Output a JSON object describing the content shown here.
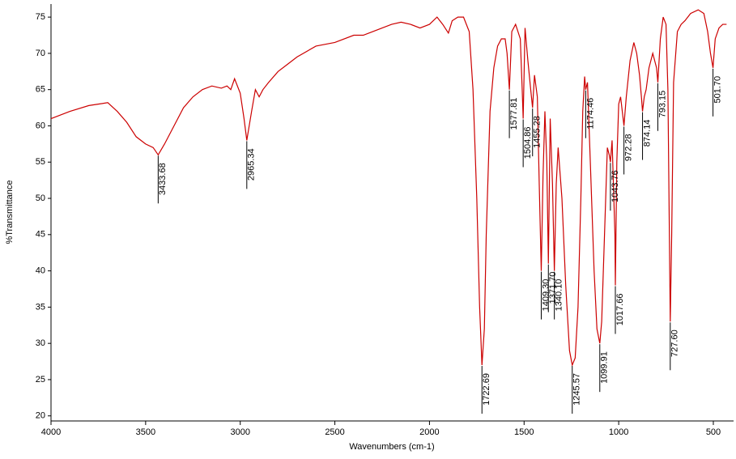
{
  "chart_data": {
    "type": "line",
    "xlabel": "Wavenumbers (cm-1)",
    "ylabel": "%Transmittance",
    "color": "#cc0000",
    "xlim": [
      4000,
      393
    ],
    "ylim": [
      19.3,
      76.8
    ],
    "xticks": [
      4000,
      3500,
      3000,
      2500,
      2000,
      1500,
      1000,
      500
    ],
    "yticks": [
      20,
      25,
      30,
      35,
      40,
      45,
      50,
      55,
      60,
      65,
      70,
      75
    ],
    "x": [
      4000,
      3900,
      3800,
      3700,
      3650,
      3600,
      3550,
      3500,
      3460,
      3433.68,
      3400,
      3350,
      3300,
      3250,
      3200,
      3150,
      3100,
      3070,
      3050,
      3030,
      3000,
      2980,
      2965.34,
      2940,
      2920,
      2900,
      2880,
      2850,
      2800,
      2750,
      2700,
      2600,
      2500,
      2400,
      2350,
      2300,
      2250,
      2200,
      2150,
      2100,
      2050,
      2000,
      1960,
      1930,
      1900,
      1880,
      1850,
      1820,
      1790,
      1770,
      1750,
      1735,
      1722.69,
      1710,
      1700,
      1680,
      1660,
      1640,
      1620,
      1600,
      1590,
      1577.81,
      1565,
      1545,
      1520,
      1510,
      1504.86,
      1495,
      1480,
      1465,
      1455.28,
      1445,
      1430,
      1420,
      1409.3,
      1400,
      1390,
      1380,
      1371.7,
      1362,
      1350,
      1340.1,
      1330,
      1320,
      1300,
      1280,
      1260,
      1245.57,
      1230,
      1215,
      1200,
      1190,
      1180,
      1174.46,
      1165,
      1150,
      1130,
      1115,
      1099.91,
      1090,
      1075,
      1060,
      1050,
      1043.76,
      1035,
      1020,
      1017.66,
      1010,
      1000,
      990,
      972.28,
      960,
      940,
      920,
      905,
      890,
      880,
      874.14,
      865,
      855,
      840,
      820,
      800,
      793.15,
      780,
      765,
      750,
      740,
      727.6,
      720,
      710,
      690,
      670,
      650,
      620,
      580,
      550,
      530,
      515,
      501.7,
      490,
      470,
      450,
      430
    ],
    "values": [
      61,
      62,
      62.8,
      63.2,
      62,
      60.5,
      58.5,
      57.5,
      57,
      56,
      57.5,
      60,
      62.5,
      64,
      65,
      65.5,
      65.2,
      65.5,
      65,
      66.5,
      64.5,
      61,
      58,
      62,
      65,
      64,
      65,
      66,
      67.5,
      68.5,
      69.5,
      71,
      71.5,
      72.5,
      72.5,
      73,
      73.5,
      74,
      74.3,
      74,
      73.5,
      74,
      75,
      74,
      72.8,
      74.5,
      75,
      75,
      73,
      65,
      50,
      35,
      27,
      32,
      45,
      62,
      68,
      71,
      72,
      72,
      70,
      65,
      73,
      74,
      72,
      65,
      61,
      73.5,
      69,
      65,
      62.5,
      67,
      64,
      52,
      40,
      53,
      62,
      55,
      41,
      61,
      52,
      40,
      52,
      57,
      50,
      38,
      29,
      27,
      28,
      35,
      50,
      62,
      66.8,
      65,
      66,
      55,
      40,
      32,
      30,
      33,
      45,
      57,
      56,
      55,
      58,
      45,
      38,
      55,
      63,
      64,
      60,
      64,
      69,
      71.5,
      70,
      67,
      64,
      62,
      64,
      65,
      68,
      70,
      68,
      66,
      72,
      75,
      74,
      65,
      33,
      45,
      66,
      73,
      74,
      74.5,
      75.5,
      76,
      75.5,
      73,
      70,
      68,
      72,
      73.5,
      74,
      74
    ],
    "peak_x": [
      3433.68,
      2965.34,
      1722.69,
      1577.81,
      1504.86,
      1455.28,
      1409.3,
      1371.7,
      1340.1,
      1245.57,
      1174.46,
      1099.91,
      1043.76,
      1017.66,
      972.28,
      874.14,
      793.15,
      727.6,
      501.7
    ],
    "peak_labels": [
      "3433.68",
      "2965.34",
      "1722.69",
      "1577.81",
      "1504.86",
      "1455.28",
      "1409.30",
      "1371.70",
      "1340.10",
      "1245.57",
      "1174.46",
      "1099.91",
      "1043.76",
      "1017.66",
      "972.28",
      "874.14",
      "793.15",
      "727.60",
      "501.70"
    ]
  }
}
